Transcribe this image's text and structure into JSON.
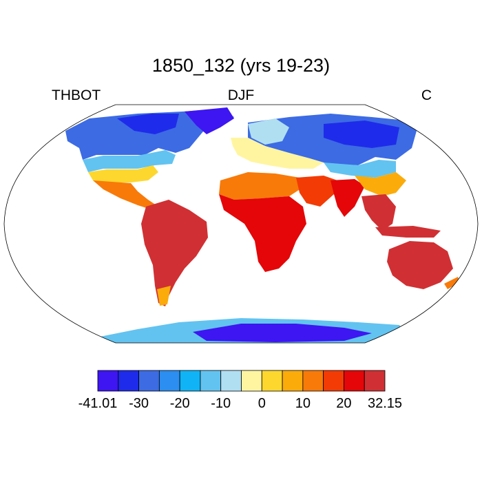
{
  "title": "1850_132 (yrs 19-23)",
  "subtitle_left": "THBOT",
  "subtitle_center": "DJF",
  "subtitle_right": "C",
  "map": {
    "projection": "robinson",
    "variable": "THBOT",
    "season": "DJF",
    "units": "C"
  },
  "colorbar": {
    "colors": [
      "#3d16f2",
      "#1f2bea",
      "#3c6be4",
      "#2b8ef0",
      "#10b3f5",
      "#62c3f0",
      "#b0dff2",
      "#fff5a0",
      "#fdd72e",
      "#fbab0a",
      "#f87a09",
      "#f33b05",
      "#e40608",
      "#d03033"
    ],
    "tick_labels": [
      {
        "text": "-41.01",
        "boundary": 0
      },
      {
        "text": "-30",
        "boundary": 2
      },
      {
        "text": "-20",
        "boundary": 4
      },
      {
        "text": "-10",
        "boundary": 6
      },
      {
        "text": "0",
        "boundary": 8
      },
      {
        "text": "10",
        "boundary": 10
      },
      {
        "text": "20",
        "boundary": 12
      },
      {
        "text": "32.15",
        "boundary": 14
      }
    ]
  }
}
